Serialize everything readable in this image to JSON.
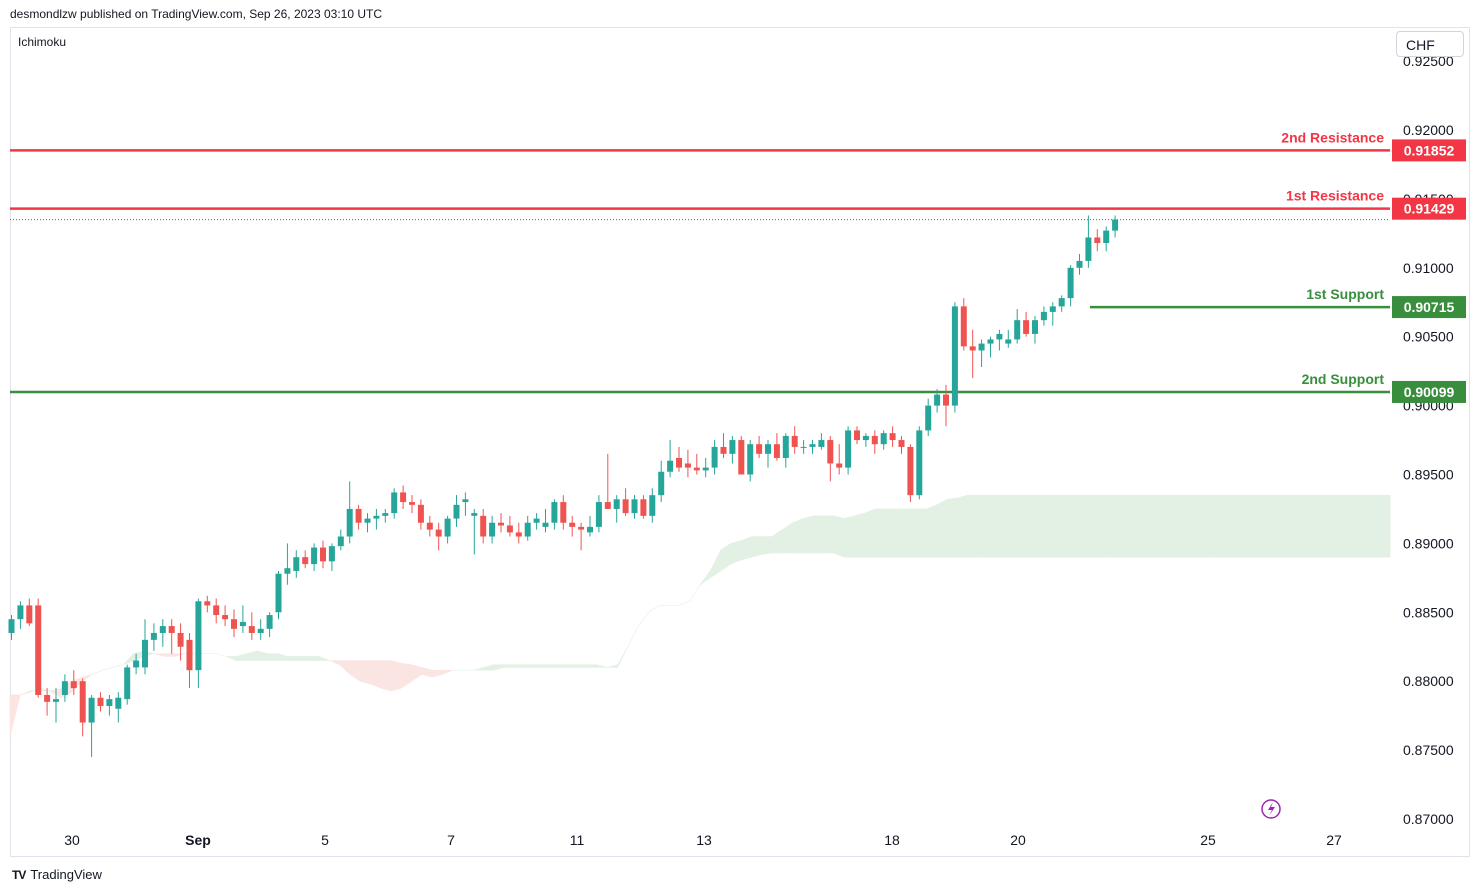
{
  "header": {
    "publisher_line": "desmondlzw published on TradingView.com, Sep 26, 2023 03:10 UTC"
  },
  "indicator": {
    "name": "Ichimoku"
  },
  "currency": {
    "label": "CHF"
  },
  "footer": {
    "brand": "TradingView",
    "logo_icon": "tradingview-logo-icon"
  },
  "colors": {
    "bull": "#26a69a",
    "bear": "#ef5350",
    "resistance": "#f23645",
    "support": "#388e3c",
    "cloud_bull": "#e3f1e4",
    "cloud_bear": "#fbe5e3",
    "axis_text": "#131722"
  },
  "chart_data": {
    "type": "candlestick",
    "symbol_quote": "CHF",
    "y_range": [
      0.87,
      0.925
    ],
    "y_ticks": [
      "0.92500",
      "0.92000",
      "0.91500",
      "0.91000",
      "0.90500",
      "0.90000",
      "0.89500",
      "0.89000",
      "0.88500",
      "0.88000",
      "0.87500",
      "0.87000"
    ],
    "x_labels": [
      "30",
      "Sep",
      "5",
      "7",
      "11",
      "13",
      "18",
      "20",
      "25",
      "27"
    ],
    "levels": [
      {
        "name": "2nd Resistance",
        "value": 0.91852,
        "label": "0.91852",
        "kind": "resistance"
      },
      {
        "name": "1st Resistance",
        "value": 0.91429,
        "label": "0.91429",
        "kind": "resistance"
      },
      {
        "name": "1st Support",
        "value": 0.90715,
        "label": "0.90715",
        "kind": "support"
      },
      {
        "name": "2nd Support",
        "value": 0.90099,
        "label": "0.90099",
        "kind": "support"
      }
    ],
    "ohlc": [
      [
        0.8835,
        0.8848,
        0.883,
        0.8845
      ],
      [
        0.8845,
        0.8858,
        0.8838,
        0.8855
      ],
      [
        0.8855,
        0.886,
        0.884,
        0.8842
      ],
      [
        0.8855,
        0.886,
        0.8788,
        0.879
      ],
      [
        0.879,
        0.8795,
        0.8775,
        0.8785
      ],
      [
        0.8785,
        0.8795,
        0.877,
        0.8787
      ],
      [
        0.879,
        0.8805,
        0.8785,
        0.88
      ],
      [
        0.88,
        0.8808,
        0.879,
        0.8795
      ],
      [
        0.88,
        0.8802,
        0.876,
        0.877
      ],
      [
        0.877,
        0.879,
        0.8745,
        0.8788
      ],
      [
        0.8788,
        0.8792,
        0.8778,
        0.8782
      ],
      [
        0.8782,
        0.879,
        0.8775,
        0.8787
      ],
      [
        0.878,
        0.8792,
        0.877,
        0.8788
      ],
      [
        0.8787,
        0.8812,
        0.8783,
        0.881
      ],
      [
        0.881,
        0.882,
        0.8805,
        0.8815
      ],
      [
        0.881,
        0.8845,
        0.8805,
        0.883
      ],
      [
        0.883,
        0.8842,
        0.8822,
        0.8835
      ],
      [
        0.8835,
        0.8845,
        0.8825,
        0.884
      ],
      [
        0.884,
        0.8845,
        0.882,
        0.8835
      ],
      [
        0.8835,
        0.8842,
        0.8815,
        0.8825
      ],
      [
        0.883,
        0.8835,
        0.8795,
        0.8808
      ],
      [
        0.8808,
        0.886,
        0.8795,
        0.8858
      ],
      [
        0.8858,
        0.8862,
        0.885,
        0.8855
      ],
      [
        0.8855,
        0.886,
        0.8842,
        0.8848
      ],
      [
        0.8848,
        0.8855,
        0.884,
        0.8845
      ],
      [
        0.8845,
        0.8852,
        0.8832,
        0.8838
      ],
      [
        0.884,
        0.8855,
        0.8835,
        0.8843
      ],
      [
        0.884,
        0.885,
        0.883,
        0.8835
      ],
      [
        0.8835,
        0.8845,
        0.883,
        0.8838
      ],
      [
        0.8838,
        0.885,
        0.8832,
        0.8848
      ],
      [
        0.885,
        0.888,
        0.8845,
        0.8878
      ],
      [
        0.8878,
        0.89,
        0.887,
        0.8882
      ],
      [
        0.888,
        0.8895,
        0.8875,
        0.889
      ],
      [
        0.889,
        0.8895,
        0.8882,
        0.8885
      ],
      [
        0.8885,
        0.89,
        0.888,
        0.8897
      ],
      [
        0.8897,
        0.8902,
        0.8882,
        0.8887
      ],
      [
        0.8887,
        0.89,
        0.888,
        0.8898
      ],
      [
        0.8898,
        0.891,
        0.8895,
        0.8905
      ],
      [
        0.8905,
        0.8945,
        0.89,
        0.8925
      ],
      [
        0.8925,
        0.8928,
        0.891,
        0.8915
      ],
      [
        0.8915,
        0.8922,
        0.8908,
        0.8918
      ],
      [
        0.8918,
        0.8925,
        0.891,
        0.892
      ],
      [
        0.892,
        0.8925,
        0.8915,
        0.8922
      ],
      [
        0.8922,
        0.894,
        0.8918,
        0.8937
      ],
      [
        0.8937,
        0.8942,
        0.8925,
        0.893
      ],
      [
        0.893,
        0.8935,
        0.8922,
        0.8928
      ],
      [
        0.8928,
        0.8932,
        0.891,
        0.8915
      ],
      [
        0.8915,
        0.892,
        0.8905,
        0.891
      ],
      [
        0.891,
        0.8915,
        0.8895,
        0.8905
      ],
      [
        0.8905,
        0.892,
        0.89,
        0.8918
      ],
      [
        0.8918,
        0.8935,
        0.8912,
        0.8928
      ],
      [
        0.893,
        0.8937,
        0.892,
        0.8932
      ],
      [
        0.892,
        0.8925,
        0.8892,
        0.8922
      ],
      [
        0.892,
        0.8925,
        0.89,
        0.8905
      ],
      [
        0.8905,
        0.892,
        0.89,
        0.8915
      ],
      [
        0.8915,
        0.8922,
        0.8908,
        0.8913
      ],
      [
        0.8913,
        0.892,
        0.8905,
        0.8908
      ],
      [
        0.8908,
        0.8915,
        0.89,
        0.8905
      ],
      [
        0.8905,
        0.892,
        0.8902,
        0.8915
      ],
      [
        0.8915,
        0.8922,
        0.891,
        0.8918
      ],
      [
        0.8912,
        0.8925,
        0.8908,
        0.8915
      ],
      [
        0.8915,
        0.8932,
        0.891,
        0.893
      ],
      [
        0.893,
        0.8935,
        0.891,
        0.8915
      ],
      [
        0.8915,
        0.892,
        0.8905,
        0.8912
      ],
      [
        0.8912,
        0.8915,
        0.8895,
        0.891
      ],
      [
        0.8908,
        0.892,
        0.8905,
        0.8912
      ],
      [
        0.8912,
        0.8935,
        0.8908,
        0.893
      ],
      [
        0.893,
        0.8965,
        0.8925,
        0.8925
      ],
      [
        0.8925,
        0.8935,
        0.8915,
        0.8932
      ],
      [
        0.8932,
        0.894,
        0.892,
        0.8922
      ],
      [
        0.8922,
        0.8935,
        0.8918,
        0.8932
      ],
      [
        0.8932,
        0.8935,
        0.8918,
        0.892
      ],
      [
        0.892,
        0.894,
        0.8915,
        0.8935
      ],
      [
        0.8935,
        0.896,
        0.893,
        0.8952
      ],
      [
        0.8952,
        0.8975,
        0.8948,
        0.896
      ],
      [
        0.8962,
        0.897,
        0.8952,
        0.8955
      ],
      [
        0.8958,
        0.8968,
        0.8948,
        0.8955
      ],
      [
        0.8955,
        0.8965,
        0.895,
        0.8953
      ],
      [
        0.8953,
        0.8962,
        0.8948,
        0.8955
      ],
      [
        0.8955,
        0.8975,
        0.895,
        0.897
      ],
      [
        0.897,
        0.898,
        0.8962,
        0.8965
      ],
      [
        0.8965,
        0.8978,
        0.8958,
        0.8975
      ],
      [
        0.8975,
        0.8978,
        0.895,
        0.895
      ],
      [
        0.895,
        0.8975,
        0.8945,
        0.8972
      ],
      [
        0.8972,
        0.8978,
        0.8962,
        0.8965
      ],
      [
        0.8965,
        0.8975,
        0.8955,
        0.8972
      ],
      [
        0.8972,
        0.898,
        0.896,
        0.8962
      ],
      [
        0.8962,
        0.898,
        0.8955,
        0.8978
      ],
      [
        0.8978,
        0.8985,
        0.8965,
        0.897
      ],
      [
        0.897,
        0.8975,
        0.8965,
        0.897
      ],
      [
        0.897,
        0.8975,
        0.8965,
        0.8972
      ],
      [
        0.897,
        0.898,
        0.8968,
        0.8975
      ],
      [
        0.8975,
        0.8978,
        0.8945,
        0.8958
      ],
      [
        0.8958,
        0.8972,
        0.895,
        0.8955
      ],
      [
        0.8955,
        0.8985,
        0.895,
        0.8982
      ],
      [
        0.8982,
        0.8985,
        0.8972,
        0.8975
      ],
      [
        0.8975,
        0.898,
        0.897,
        0.8978
      ],
      [
        0.8978,
        0.8982,
        0.8965,
        0.8972
      ],
      [
        0.8972,
        0.8982,
        0.8968,
        0.898
      ],
      [
        0.898,
        0.8985,
        0.897,
        0.8975
      ],
      [
        0.8975,
        0.8978,
        0.8965,
        0.897
      ],
      [
        0.897,
        0.8972,
        0.893,
        0.8935
      ],
      [
        0.8935,
        0.8985,
        0.8932,
        0.8982
      ],
      [
        0.8982,
        0.9005,
        0.8978,
        0.9
      ],
      [
        0.9,
        0.9012,
        0.8995,
        0.9008
      ],
      [
        0.9008,
        0.9015,
        0.8985,
        0.9
      ],
      [
        0.9,
        0.9075,
        0.8995,
        0.9072
      ],
      [
        0.9072,
        0.9078,
        0.904,
        0.9043
      ],
      [
        0.9043,
        0.9055,
        0.902,
        0.904
      ],
      [
        0.904,
        0.9048,
        0.9028,
        0.9045
      ],
      [
        0.9045,
        0.905,
        0.9035,
        0.9048
      ],
      [
        0.9048,
        0.9055,
        0.904,
        0.9052
      ],
      [
        0.9045,
        0.9055,
        0.9042,
        0.9048
      ],
      [
        0.9048,
        0.907,
        0.9045,
        0.9062
      ],
      [
        0.9062,
        0.9068,
        0.905,
        0.9052
      ],
      [
        0.9052,
        0.9065,
        0.9045,
        0.9062
      ],
      [
        0.9062,
        0.9072,
        0.9058,
        0.9068
      ],
      [
        0.9068,
        0.9075,
        0.9058,
        0.9072
      ],
      [
        0.9072,
        0.908,
        0.9068,
        0.9078
      ],
      [
        0.9078,
        0.9102,
        0.9072,
        0.91
      ],
      [
        0.91,
        0.911,
        0.9095,
        0.9105
      ],
      [
        0.9105,
        0.9138,
        0.91,
        0.9122
      ],
      [
        0.9122,
        0.9128,
        0.9112,
        0.9118
      ],
      [
        0.9118,
        0.913,
        0.9112,
        0.9127
      ],
      [
        0.9127,
        0.9138,
        0.9122,
        0.9135
      ]
    ],
    "cloud_a": [
      0.876,
      0.879,
      0.8792,
      0.8795,
      0.8792,
      0.8788,
      0.8792,
      0.88,
      0.8805,
      0.8808,
      0.881,
      0.8812,
      0.882,
      0.8822,
      0.882,
      0.8818,
      0.8818,
      0.882,
      0.882,
      0.882,
      0.882,
      0.8818,
      0.8818,
      0.882,
      0.8822,
      0.882,
      0.882,
      0.8818,
      0.8818,
      0.8818,
      0.8818,
      0.8815,
      0.8812,
      0.8805,
      0.88,
      0.8798,
      0.8795,
      0.8793,
      0.8795,
      0.88,
      0.8805,
      0.8803,
      0.8805,
      0.8808,
      0.8808,
      0.8808,
      0.881,
      0.8812,
      0.8812,
      0.8812,
      0.8812,
      0.8812,
      0.8812,
      0.8812,
      0.8812,
      0.8812,
      0.8812,
      0.8812,
      0.881,
      0.8812,
      0.8825,
      0.884,
      0.885,
      0.8855,
      0.8855,
      0.8855,
      0.8858,
      0.887,
      0.888,
      0.8895,
      0.89,
      0.8902,
      0.8905,
      0.8905,
      0.8905,
      0.891,
      0.8915,
      0.8918,
      0.892,
      0.892,
      0.892,
      0.8918,
      0.892,
      0.8922,
      0.8925,
      0.8925,
      0.8925,
      0.8925,
      0.8925,
      0.8925,
      0.8928,
      0.8932,
      0.8933,
      0.8935,
      0.8935,
      0.8935,
      0.8935,
      0.8935,
      0.8935,
      0.8935,
      0.8935,
      0.8935,
      0.8935,
      0.8935,
      0.8935,
      0.8935,
      0.8935,
      0.8935,
      0.8935,
      0.8935,
      0.8935,
      0.8935,
      0.8935,
      0.8935,
      0.8935,
      0.8935,
      0.8935,
      0.8935,
      0.8935,
      0.8935,
      0.8935,
      0.8935,
      0.8935,
      0.8935,
      0.8935,
      0.8935,
      0.8935,
      0.8935,
      0.8935,
      0.8935,
      0.8935,
      0.8935,
      0.8935,
      0.8935,
      0.8935
    ],
    "cloud_b": [
      0.879,
      0.879,
      0.8793,
      0.8793,
      0.8793,
      0.8795,
      0.88,
      0.8803,
      0.8805,
      0.8808,
      0.881,
      0.8812,
      0.8815,
      0.8818,
      0.882,
      0.882,
      0.882,
      0.882,
      0.882,
      0.882,
      0.882,
      0.8818,
      0.8815,
      0.8815,
      0.8815,
      0.8815,
      0.8815,
      0.8815,
      0.8815,
      0.8815,
      0.8815,
      0.8815,
      0.8815,
      0.8815,
      0.8815,
      0.8815,
      0.8815,
      0.8815,
      0.8813,
      0.8812,
      0.881,
      0.8808,
      0.8808,
      0.8808,
      0.8808,
      0.8808,
      0.8808,
      0.8808,
      0.881,
      0.881,
      0.881,
      0.881,
      0.881,
      0.881,
      0.881,
      0.881,
      0.881,
      0.881,
      0.881,
      0.881,
      0.8825,
      0.884,
      0.885,
      0.8855,
      0.8855,
      0.8855,
      0.8858,
      0.887,
      0.8875,
      0.888,
      0.8885,
      0.8888,
      0.889,
      0.8892,
      0.8893,
      0.8893,
      0.8893,
      0.8893,
      0.8893,
      0.8893,
      0.8893,
      0.889,
      0.889,
      0.889,
      0.889,
      0.889,
      0.889,
      0.889,
      0.889,
      0.889,
      0.889,
      0.889,
      0.889,
      0.889,
      0.889,
      0.889,
      0.889,
      0.889,
      0.889,
      0.889,
      0.889,
      0.889,
      0.889,
      0.889,
      0.889,
      0.889,
      0.889,
      0.889,
      0.889,
      0.889,
      0.889,
      0.889,
      0.889,
      0.889,
      0.889,
      0.889,
      0.889,
      0.889,
      0.889,
      0.889,
      0.889,
      0.889,
      0.889,
      0.889,
      0.889,
      0.889,
      0.889,
      0.889,
      0.889,
      0.889,
      0.889,
      0.889,
      0.889,
      0.889,
      0.889
    ]
  }
}
